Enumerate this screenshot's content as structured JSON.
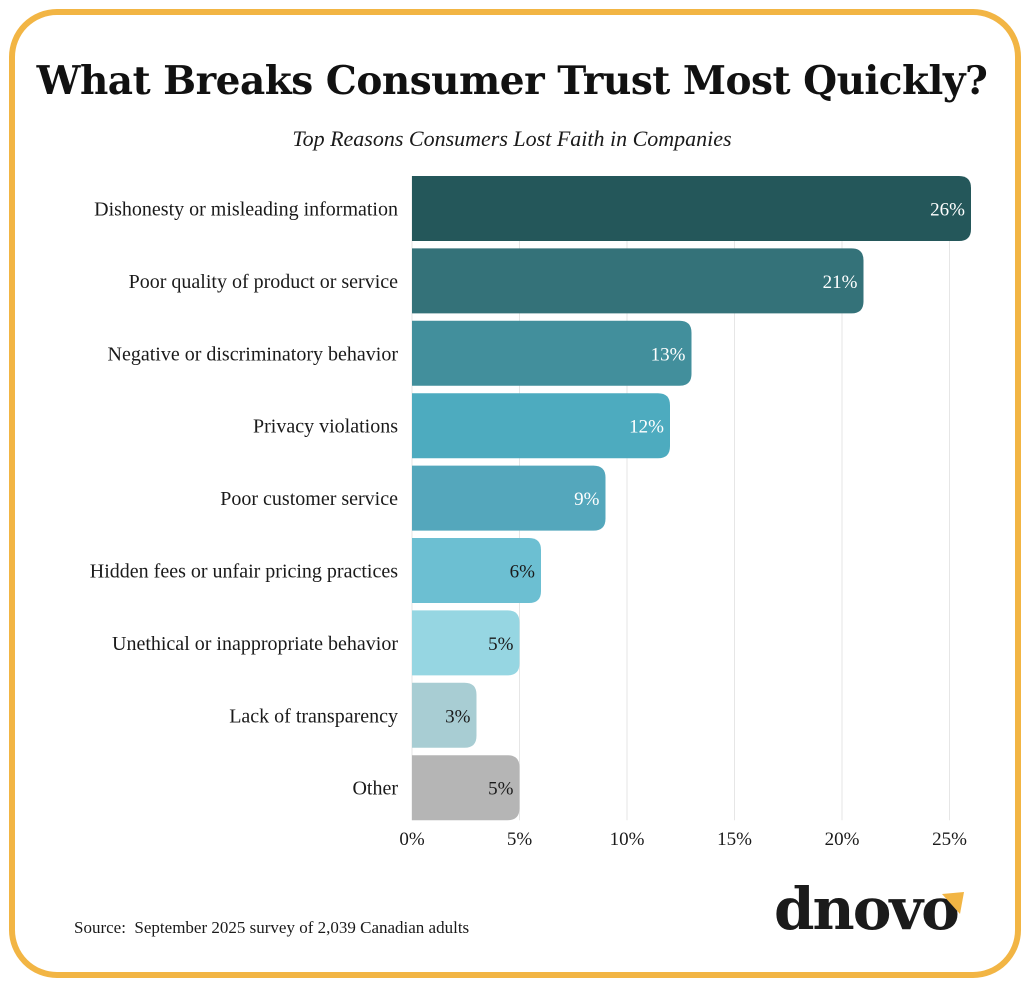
{
  "title": "What Breaks Consumer Trust Most Quickly?",
  "subtitle": "Top Reasons Consumers Lost Faith in Companies",
  "source": "Source:  September 2025 survey of 2,039 Canadian adults",
  "logo": {
    "text": "dnovo",
    "accent_color": "#f2b544"
  },
  "frame_color": "#f2b544",
  "chart_data": {
    "type": "bar",
    "orientation": "horizontal",
    "title": "What Breaks Consumer Trust Most Quickly?",
    "subtitle": "Top Reasons Consumers Lost Faith in Companies",
    "categories": [
      "Dishonesty or misleading information",
      "Poor quality of product or service",
      "Negative or discriminatory behavior",
      "Privacy violations",
      "Poor customer service",
      "Hidden fees or unfair pricing practices",
      "Unethical or inappropriate behavior",
      "Lack of transparency",
      "Other"
    ],
    "values": [
      26,
      21,
      13,
      12,
      9,
      6,
      5,
      3,
      5
    ],
    "value_labels": [
      "26%",
      "21%",
      "13%",
      "12%",
      "9%",
      "6%",
      "5%",
      "3%",
      "5%"
    ],
    "colors": [
      "#24575a",
      "#347279",
      "#428f9c",
      "#4dabbf",
      "#54a7bc",
      "#6cbfd2",
      "#96d6e2",
      "#a8cdd3",
      "#b5b5b5"
    ],
    "label_colors": [
      "#ffffff",
      "#ffffff",
      "#ffffff",
      "#ffffff",
      "#ffffff",
      "#1a1a1a",
      "#1a1a1a",
      "#1a1a1a",
      "#1a1a1a"
    ],
    "xlim": [
      0,
      26
    ],
    "xticks": [
      0,
      5,
      10,
      15,
      20,
      25
    ],
    "xtick_labels": [
      "0%",
      "5%",
      "10%",
      "15%",
      "20%",
      "25%"
    ],
    "grid": "vertical",
    "legend": "none"
  }
}
